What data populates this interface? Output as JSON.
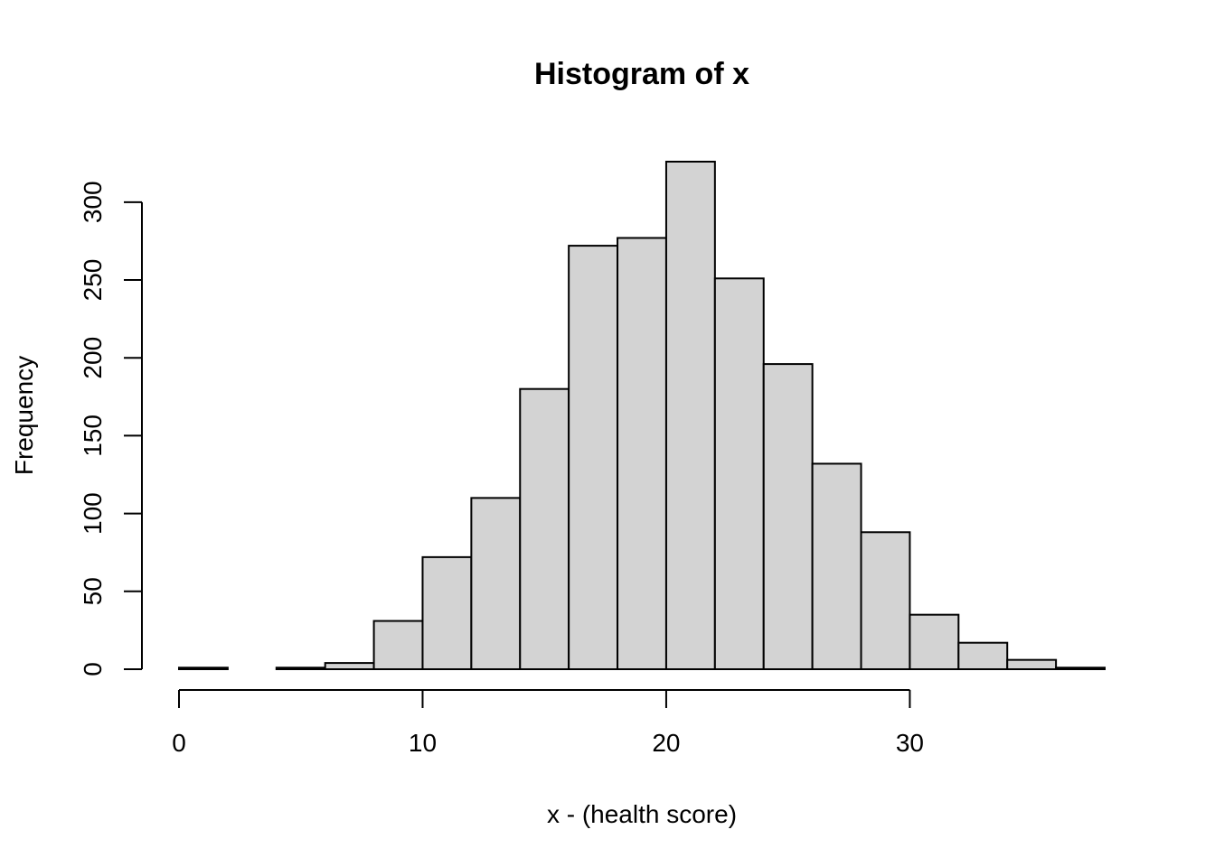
{
  "chart_data": {
    "type": "bar",
    "title": "Histogram of x",
    "xlabel": "x - (health score)",
    "ylabel": "Frequency",
    "bin_edges": [
      0,
      2,
      4,
      6,
      8,
      10,
      12,
      14,
      16,
      18,
      20,
      22,
      24,
      26,
      28,
      30,
      32,
      34,
      36,
      38
    ],
    "values": [
      1,
      0,
      1,
      4,
      31,
      72,
      110,
      180,
      272,
      277,
      326,
      251,
      196,
      132,
      88,
      35,
      17,
      6,
      1
    ],
    "xlim": [
      0,
      38
    ],
    "ylim": [
      0,
      326
    ],
    "x_ticks": [
      0,
      10,
      20,
      30
    ],
    "y_ticks": [
      0,
      50,
      100,
      150,
      200,
      250,
      300
    ],
    "bar_color": "#d3d3d3",
    "grid": false
  }
}
